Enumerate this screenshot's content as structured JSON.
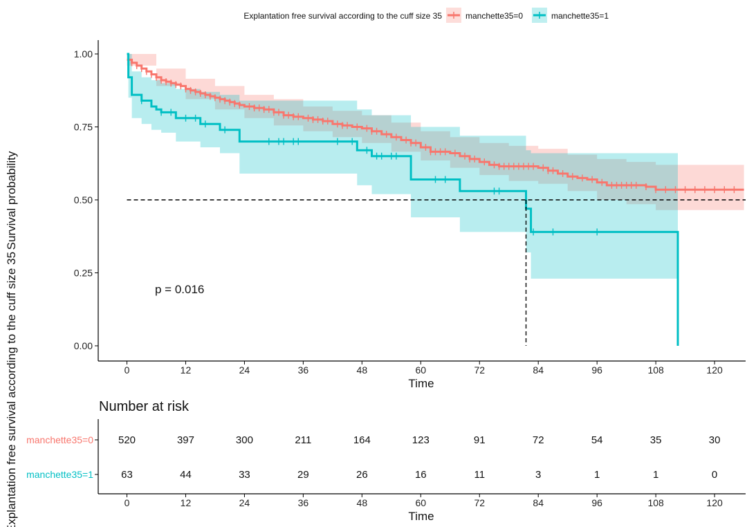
{
  "chart_data": {
    "type": "line",
    "subtype": "kaplan-meier",
    "legend": {
      "title": "Explantation free survival according to the cuff size 35",
      "position": "top"
    },
    "xlabel": "Time",
    "ylabel": "Survival probability",
    "outer_ylabel": "Explantation free survival according to the cuff size 35",
    "xlim": [
      -3,
      126
    ],
    "ylim": [
      0,
      1.0
    ],
    "xticks": [
      0,
      12,
      24,
      36,
      48,
      60,
      72,
      84,
      96,
      108,
      120
    ],
    "xtick_labels": [
      "0",
      "12",
      "24",
      "36",
      "48",
      "60",
      "72",
      "84",
      "96",
      "108",
      "120"
    ],
    "yticks": [
      0,
      0.25,
      0.5,
      0.75,
      1.0
    ],
    "ytick_labels": [
      "0.00",
      "0.25",
      "0.50",
      "0.75",
      "1.00"
    ],
    "grid": false,
    "annotation": "p = 0.016",
    "median_line": {
      "y": 0.5,
      "median_x": 81.5
    },
    "series": [
      {
        "name": "manchette35=0",
        "color": "#F8766D",
        "steps": [
          [
            0,
            0.98
          ],
          [
            1,
            0.97
          ],
          [
            2,
            0.96
          ],
          [
            3,
            0.95
          ],
          [
            4,
            0.94
          ],
          [
            5,
            0.93
          ],
          [
            6,
            0.92
          ],
          [
            7,
            0.91
          ],
          [
            8,
            0.905
          ],
          [
            9,
            0.9
          ],
          [
            10,
            0.895
          ],
          [
            11,
            0.89
          ],
          [
            12,
            0.88
          ],
          [
            13,
            0.875
          ],
          [
            14,
            0.87
          ],
          [
            15,
            0.865
          ],
          [
            16,
            0.86
          ],
          [
            17,
            0.855
          ],
          [
            18,
            0.85
          ],
          [
            19,
            0.845
          ],
          [
            20,
            0.84
          ],
          [
            21,
            0.835
          ],
          [
            22,
            0.83
          ],
          [
            23,
            0.825
          ],
          [
            24,
            0.82
          ],
          [
            26,
            0.815
          ],
          [
            28,
            0.81
          ],
          [
            30,
            0.8
          ],
          [
            32,
            0.79
          ],
          [
            34,
            0.785
          ],
          [
            36,
            0.78
          ],
          [
            38,
            0.775
          ],
          [
            40,
            0.77
          ],
          [
            42,
            0.76
          ],
          [
            44,
            0.755
          ],
          [
            46,
            0.75
          ],
          [
            48,
            0.745
          ],
          [
            50,
            0.735
          ],
          [
            52,
            0.725
          ],
          [
            54,
            0.715
          ],
          [
            56,
            0.705
          ],
          [
            58,
            0.695
          ],
          [
            60,
            0.68
          ],
          [
            62,
            0.665
          ],
          [
            66,
            0.66
          ],
          [
            68,
            0.65
          ],
          [
            70,
            0.64
          ],
          [
            72,
            0.63
          ],
          [
            74,
            0.62
          ],
          [
            76,
            0.615
          ],
          [
            84,
            0.61
          ],
          [
            86,
            0.6
          ],
          [
            88,
            0.59
          ],
          [
            90,
            0.58
          ],
          [
            92,
            0.575
          ],
          [
            94,
            0.57
          ],
          [
            96,
            0.56
          ],
          [
            98,
            0.55
          ],
          [
            106,
            0.545
          ],
          [
            108,
            0.535
          ],
          [
            126,
            0.535
          ]
        ],
        "ci_upper": [
          [
            0,
            1.0
          ],
          [
            6,
            0.95
          ],
          [
            12,
            0.915
          ],
          [
            18,
            0.89
          ],
          [
            24,
            0.86
          ],
          [
            30,
            0.845
          ],
          [
            36,
            0.82
          ],
          [
            42,
            0.805
          ],
          [
            48,
            0.79
          ],
          [
            54,
            0.765
          ],
          [
            60,
            0.735
          ],
          [
            66,
            0.715
          ],
          [
            72,
            0.695
          ],
          [
            78,
            0.685
          ],
          [
            84,
            0.675
          ],
          [
            90,
            0.655
          ],
          [
            96,
            0.64
          ],
          [
            102,
            0.63
          ],
          [
            108,
            0.62
          ],
          [
            126,
            0.62
          ]
        ],
        "ci_lower": [
          [
            0,
            0.96
          ],
          [
            6,
            0.89
          ],
          [
            12,
            0.845
          ],
          [
            18,
            0.81
          ],
          [
            24,
            0.78
          ],
          [
            30,
            0.755
          ],
          [
            36,
            0.735
          ],
          [
            42,
            0.715
          ],
          [
            48,
            0.695
          ],
          [
            54,
            0.665
          ],
          [
            60,
            0.635
          ],
          [
            66,
            0.61
          ],
          [
            72,
            0.585
          ],
          [
            78,
            0.565
          ],
          [
            84,
            0.555
          ],
          [
            90,
            0.53
          ],
          [
            96,
            0.5
          ],
          [
            102,
            0.485
          ],
          [
            108,
            0.465
          ],
          [
            126,
            0.465
          ]
        ],
        "censor_times": [
          1,
          2,
          3,
          4,
          5,
          6,
          7,
          8,
          9,
          10,
          11,
          12,
          13,
          14,
          15,
          16,
          17,
          18,
          19,
          20,
          21,
          22,
          23,
          25,
          26,
          27,
          28,
          29,
          30,
          31,
          32,
          33,
          34,
          35,
          37,
          38,
          39,
          40,
          41,
          43,
          44,
          45,
          47,
          49,
          50,
          51,
          53,
          55,
          57,
          58,
          59,
          61,
          62,
          63,
          64,
          65,
          67,
          69,
          70,
          71,
          73,
          75,
          76,
          77,
          78,
          79,
          80,
          81,
          82,
          83,
          85,
          86,
          87,
          89,
          91,
          93,
          95,
          97,
          99,
          100,
          101,
          102,
          103,
          104,
          106,
          108,
          110,
          112,
          114,
          116,
          118,
          120,
          122,
          124
        ]
      },
      {
        "name": "manchette35=1",
        "color": "#00BFC4",
        "steps": [
          [
            0,
            1.0
          ],
          [
            0.3,
            0.92
          ],
          [
            1,
            0.86
          ],
          [
            3,
            0.84
          ],
          [
            5,
            0.82
          ],
          [
            6,
            0.81
          ],
          [
            7,
            0.8
          ],
          [
            10,
            0.78
          ],
          [
            15,
            0.76
          ],
          [
            19,
            0.74
          ],
          [
            23,
            0.7
          ],
          [
            47,
            0.67
          ],
          [
            50,
            0.65
          ],
          [
            58,
            0.57
          ],
          [
            68,
            0.53
          ],
          [
            81.5,
            0.47
          ],
          [
            82.5,
            0.39
          ],
          [
            112,
            0.39
          ],
          [
            112.5,
            0.0
          ]
        ],
        "ci_upper": [
          [
            0,
            1.0
          ],
          [
            1,
            0.94
          ],
          [
            3,
            0.92
          ],
          [
            5,
            0.91
          ],
          [
            7,
            0.9
          ],
          [
            10,
            0.88
          ],
          [
            15,
            0.87
          ],
          [
            19,
            0.86
          ],
          [
            23,
            0.84
          ],
          [
            47,
            0.81
          ],
          [
            50,
            0.79
          ],
          [
            58,
            0.75
          ],
          [
            68,
            0.72
          ],
          [
            81.5,
            0.67
          ],
          [
            82.5,
            0.66
          ],
          [
            112.5,
            0.66
          ]
        ],
        "ci_lower": [
          [
            0,
            0.98
          ],
          [
            0.3,
            0.85
          ],
          [
            1,
            0.78
          ],
          [
            3,
            0.76
          ],
          [
            5,
            0.74
          ],
          [
            7,
            0.73
          ],
          [
            10,
            0.7
          ],
          [
            15,
            0.68
          ],
          [
            19,
            0.66
          ],
          [
            23,
            0.59
          ],
          [
            47,
            0.55
          ],
          [
            50,
            0.52
          ],
          [
            58,
            0.44
          ],
          [
            68,
            0.39
          ],
          [
            81.5,
            0.32
          ],
          [
            82.5,
            0.23
          ],
          [
            112.5,
            0.23
          ]
        ],
        "censor_times": [
          3,
          7,
          9,
          12,
          14,
          16,
          20,
          29,
          31,
          32,
          34,
          35,
          43,
          46,
          49,
          51,
          52,
          54,
          55,
          63,
          65,
          75,
          76,
          83,
          87,
          96
        ]
      }
    ],
    "risk_table": {
      "title": "Number at risk",
      "times": [
        0,
        12,
        24,
        36,
        48,
        60,
        72,
        84,
        96,
        108,
        120
      ],
      "xlabel": "Time",
      "rows": [
        {
          "name": "manchette35=0",
          "color": "#F8766D",
          "values": [
            "520",
            "397",
            "300",
            "211",
            "164",
            "123",
            "91",
            "72",
            "54",
            "35",
            "30"
          ]
        },
        {
          "name": "manchette35=1",
          "color": "#00BFC4",
          "values": [
            "63",
            "44",
            "33",
            "29",
            "26",
            "16",
            "11",
            "3",
            "1",
            "1",
            "0"
          ]
        }
      ]
    }
  }
}
